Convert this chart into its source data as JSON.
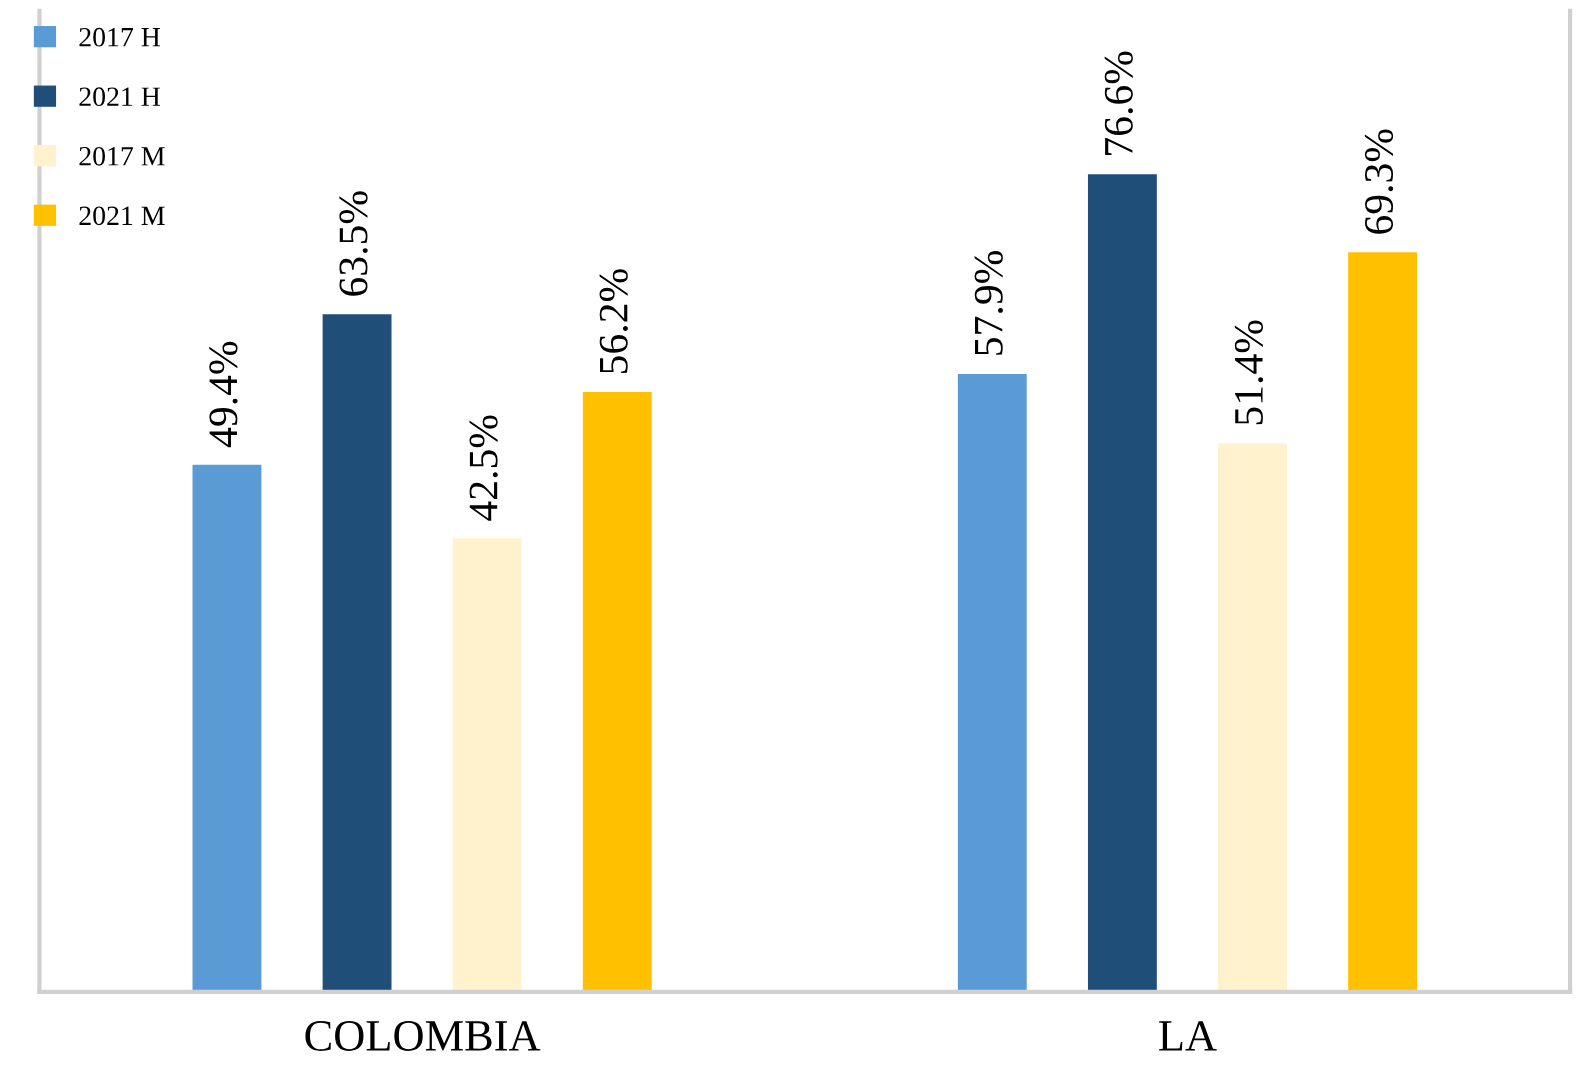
{
  "chart_data": {
    "type": "bar",
    "categories": [
      "COLOMBIA",
      "LA"
    ],
    "series": [
      {
        "name": "2017 H",
        "color": "#5b9bd5",
        "values": [
          49.4,
          57.9
        ],
        "value_labels": [
          "49.4%",
          "57.9%"
        ]
      },
      {
        "name": "2021 H",
        "color": "#1f4e79",
        "values": [
          63.5,
          76.6
        ],
        "value_labels": [
          "63.5%",
          "76.6%"
        ]
      },
      {
        "name": "2017 M",
        "color": "#fff2cc",
        "values": [
          42.5,
          51.4
        ],
        "value_labels": [
          "42.5%",
          "51.4%"
        ]
      },
      {
        "name": "2021 M",
        "color": "#ffc000",
        "values": [
          56.2,
          69.3
        ],
        "value_labels": [
          "56.2%",
          "69.3%"
        ]
      }
    ],
    "legend": "top left",
    "grid": false
  }
}
